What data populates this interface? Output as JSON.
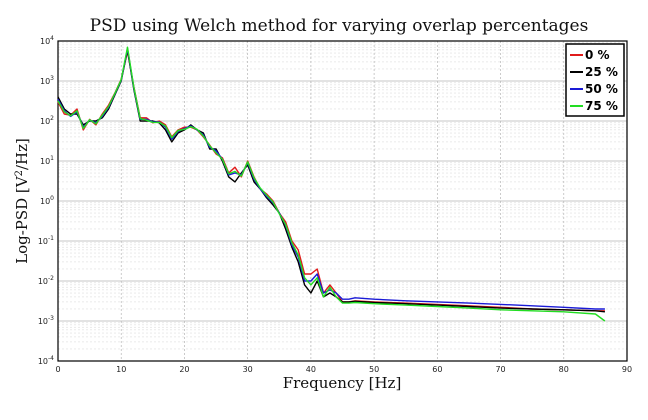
{
  "chart_data": {
    "type": "line",
    "title": "PSD using Welch method for varying overlap percentages",
    "xlabel": "Frequency [Hz]",
    "ylabel": "Log-PSD [V²/Hz]",
    "ylabel_main": "Log-PSD [V",
    "ylabel_sup": "2",
    "ylabel_tail": "/Hz]",
    "xlim": [
      0,
      90
    ],
    "ylim_log10": [
      -4,
      4
    ],
    "yscale": "log",
    "grid": true,
    "legend_position": "top-right",
    "x_ticks": [
      "0",
      "10",
      "20",
      "30",
      "40",
      "50",
      "60",
      "70",
      "80",
      "90"
    ],
    "y_ticks": [
      {
        "base": "10",
        "exp": "-4"
      },
      {
        "base": "10",
        "exp": "-3"
      },
      {
        "base": "10",
        "exp": "-2"
      },
      {
        "base": "10",
        "exp": "-1"
      },
      {
        "base": "10",
        "exp": "0"
      },
      {
        "base": "10",
        "exp": "1"
      },
      {
        "base": "10",
        "exp": "2"
      },
      {
        "base": "10",
        "exp": "3"
      },
      {
        "base": "10",
        "exp": "4"
      }
    ],
    "x": [
      0,
      1,
      2,
      3,
      4,
      5,
      6,
      7,
      8,
      9,
      10,
      11,
      12,
      13,
      14,
      15,
      16,
      17,
      18,
      19,
      20,
      21,
      22,
      23,
      24,
      25,
      26,
      27,
      28,
      29,
      30,
      31,
      32,
      33,
      34,
      35,
      36,
      37,
      38,
      39,
      40,
      41,
      42,
      43,
      44,
      45,
      46,
      47,
      50,
      55,
      60,
      65,
      70,
      75,
      80,
      85,
      86.5
    ],
    "series": [
      {
        "name": "0 %",
        "color": "#e01b1b",
        "values": [
          300,
          150,
          140,
          200,
          60,
          110,
          80,
          150,
          250,
          500,
          1100,
          5500,
          700,
          120,
          120,
          90,
          100,
          80,
          40,
          60,
          70,
          70,
          60,
          40,
          25,
          15,
          12,
          5,
          7,
          4,
          10,
          4,
          2,
          1.5,
          1,
          0.5,
          0.3,
          0.1,
          0.06,
          0.015,
          0.015,
          0.02,
          0.005,
          0.008,
          0.005,
          0.003,
          0.003,
          0.0032,
          0.003,
          0.0028,
          0.0026,
          0.0024,
          0.0022,
          0.002,
          0.0019,
          0.0018,
          0.0018
        ]
      },
      {
        "name": "25 %",
        "color": "#000000",
        "values": [
          400,
          200,
          150,
          150,
          80,
          100,
          100,
          120,
          200,
          450,
          1000,
          6000,
          600,
          100,
          100,
          100,
          90,
          60,
          30,
          50,
          60,
          80,
          60,
          50,
          20,
          20,
          10,
          4,
          3,
          5,
          8,
          3,
          2,
          1.2,
          0.8,
          0.5,
          0.2,
          0.07,
          0.03,
          0.008,
          0.005,
          0.01,
          0.004,
          0.005,
          0.004,
          0.003,
          0.003,
          0.0031,
          0.0029,
          0.0027,
          0.0025,
          0.0023,
          0.0021,
          0.002,
          0.0019,
          0.0018,
          0.0017
        ]
      },
      {
        "name": "50 %",
        "color": "#1a1ad6",
        "values": [
          350,
          180,
          130,
          170,
          70,
          105,
          90,
          130,
          220,
          480,
          1050,
          6500,
          650,
          110,
          110,
          95,
          95,
          70,
          35,
          55,
          65,
          75,
          60,
          45,
          22,
          18,
          11,
          4.5,
          5,
          4.5,
          9,
          3.5,
          2,
          1.3,
          0.9,
          0.5,
          0.25,
          0.08,
          0.04,
          0.01,
          0.01,
          0.015,
          0.005,
          0.006,
          0.005,
          0.0035,
          0.0035,
          0.0038,
          0.0035,
          0.0032,
          0.003,
          0.0028,
          0.0026,
          0.0024,
          0.0022,
          0.002,
          0.002
        ]
      },
      {
        "name": "75 %",
        "color": "#22dd22",
        "values": [
          320,
          170,
          135,
          180,
          65,
          108,
          85,
          140,
          230,
          490,
          1080,
          7000,
          680,
          115,
          105,
          92,
          92,
          75,
          38,
          58,
          62,
          72,
          62,
          42,
          24,
          16,
          11,
          4.8,
          5.5,
          4.2,
          9.5,
          3.8,
          2.1,
          1.4,
          0.95,
          0.48,
          0.26,
          0.09,
          0.045,
          0.012,
          0.008,
          0.012,
          0.004,
          0.007,
          0.004,
          0.0028,
          0.0028,
          0.0029,
          0.0027,
          0.0025,
          0.0023,
          0.0021,
          0.0019,
          0.0018,
          0.0017,
          0.0015,
          0.001
        ]
      }
    ]
  }
}
